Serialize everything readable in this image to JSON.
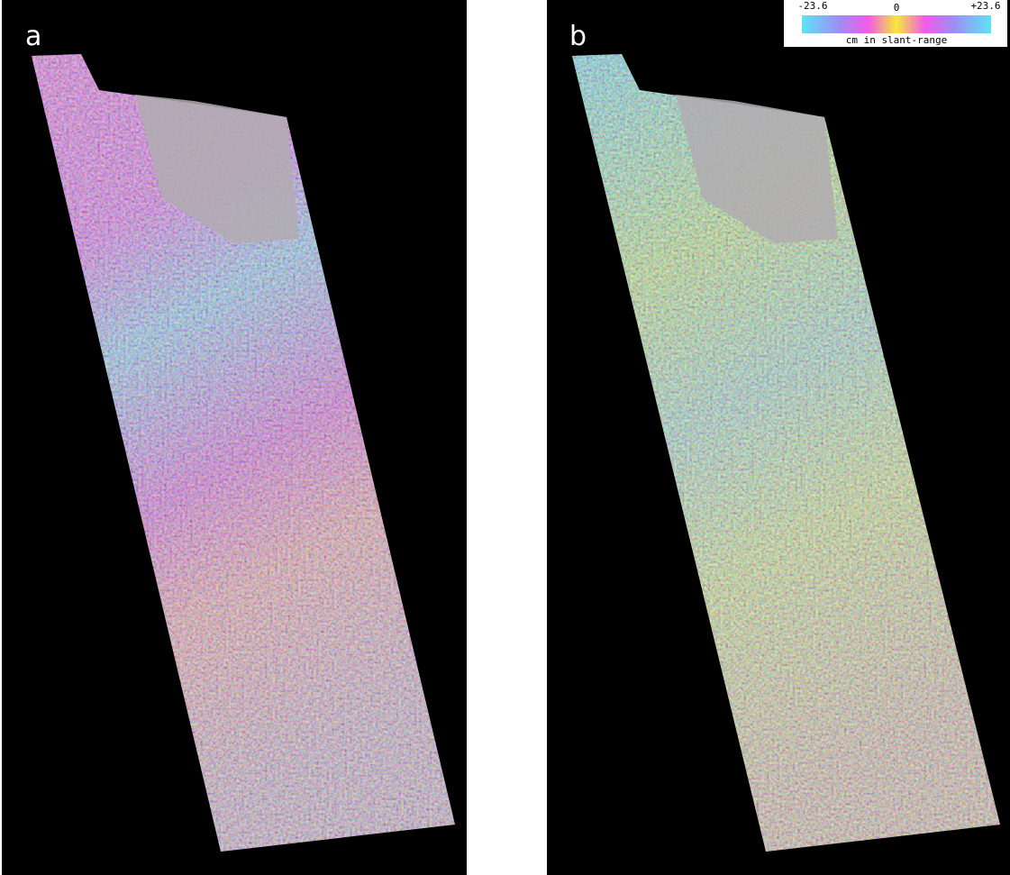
{
  "panels": [
    {
      "label": "a"
    },
    {
      "label": "b"
    }
  ],
  "colorbar": {
    "min_label": "-23.6",
    "mid_label": "0",
    "max_label": "+23.6",
    "unit_label": "cm in slant-range"
  }
}
